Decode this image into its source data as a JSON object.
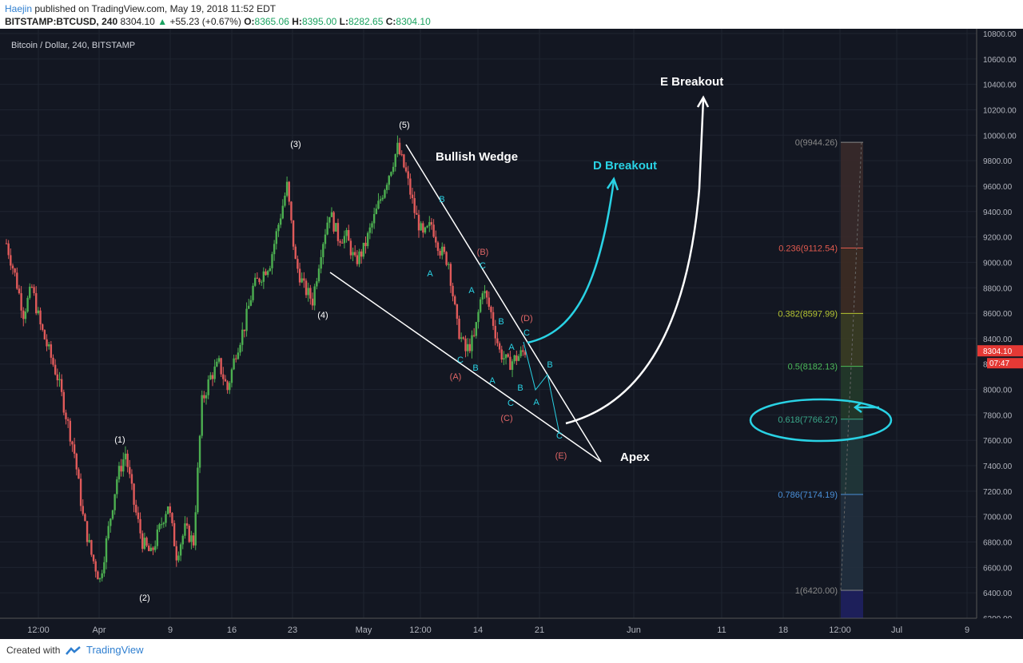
{
  "header": {
    "author": "Haejin",
    "published_text": "published on TradingView.com, May 19, 2018 11:52 EDT",
    "symbol": "BITSTAMP:BTCUSD, 240",
    "last": "8304.10",
    "change": "+55.23 (+0.67%)",
    "o_label": "O:",
    "o": "8365.06",
    "h_label": "H:",
    "h": "8395.00",
    "l_label": "L:",
    "l": "8282.65",
    "c_label": "C:",
    "c": "8304.10"
  },
  "chart_data": {
    "type": "candlestick",
    "title": "Bitcoin / Dollar, 240, BITSTAMP",
    "ylim": [
      6200,
      10800
    ],
    "y_ticks": [
      6200,
      6400,
      6600,
      6800,
      7000,
      7200,
      7400,
      7600,
      7800,
      8000,
      8200,
      8400,
      8600,
      8800,
      9000,
      9200,
      9400,
      9600,
      9800,
      10000,
      10200,
      10400,
      10600,
      10800
    ],
    "y_tick_labels": [
      "6200.00",
      "6400.00",
      "6600.00",
      "6800.00",
      "7000.00",
      "7200.00",
      "7400.00",
      "7600.00",
      "7800.00",
      "8000.00",
      "8200.00",
      "8400.00",
      "8600.00",
      "8800.00",
      "9000.00",
      "9200.00",
      "9400.00",
      "9600.00",
      "9800.00",
      "10000.00",
      "10200.00",
      "10400.00",
      "10600.00",
      "10800.00"
    ],
    "x_tick_labels": [
      "12:00",
      "Apr",
      "9",
      "16",
      "23",
      "May",
      "12:00",
      "14",
      "21",
      "Jun",
      "11",
      "18",
      "12:00",
      "Jul",
      "9"
    ],
    "price_path": [
      [
        0,
        9150
      ],
      [
        2,
        8900
      ],
      [
        4,
        8600
      ],
      [
        6,
        8800
      ],
      [
        8,
        8500
      ],
      [
        10,
        8300
      ],
      [
        12,
        8100
      ],
      [
        14,
        7800
      ],
      [
        16,
        7500
      ],
      [
        18,
        7000
      ],
      [
        20,
        6700
      ],
      [
        22,
        6500
      ],
      [
        24,
        6900
      ],
      [
        26,
        7300
      ],
      [
        28,
        7500
      ],
      [
        30,
        7100
      ],
      [
        32,
        6800
      ],
      [
        34,
        6700
      ],
      [
        36,
        6900
      ],
      [
        38,
        7100
      ],
      [
        40,
        6700
      ],
      [
        42,
        6900
      ],
      [
        44,
        6800
      ],
      [
        46,
        7900
      ],
      [
        48,
        8100
      ],
      [
        50,
        8200
      ],
      [
        52,
        8000
      ],
      [
        54,
        8300
      ],
      [
        56,
        8500
      ],
      [
        58,
        8800
      ],
      [
        60,
        8900
      ],
      [
        62,
        9000
      ],
      [
        64,
        9300
      ],
      [
        66,
        9600
      ],
      [
        68,
        9000
      ],
      [
        70,
        8800
      ],
      [
        72,
        8700
      ],
      [
        74,
        9100
      ],
      [
        76,
        9400
      ],
      [
        78,
        9200
      ],
      [
        80,
        9200
      ],
      [
        82,
        9000
      ],
      [
        84,
        9100
      ],
      [
        86,
        9300
      ],
      [
        88,
        9500
      ],
      [
        90,
        9700
      ],
      [
        92,
        9900
      ],
      [
        94,
        9700
      ],
      [
        96,
        9400
      ],
      [
        98,
        9200
      ],
      [
        100,
        9300
      ],
      [
        102,
        9100
      ],
      [
        104,
        9000
      ],
      [
        106,
        8500
      ],
      [
        108,
        8300
      ],
      [
        110,
        8400
      ],
      [
        112,
        8800
      ],
      [
        114,
        8600
      ],
      [
        116,
        8300
      ],
      [
        118,
        8200
      ],
      [
        120,
        8250
      ],
      [
        122,
        8304
      ]
    ],
    "wave_labels": [
      {
        "text": "(1)",
        "price": 7650,
        "t": 30,
        "color": "#ffffff"
      },
      {
        "text": "(2)",
        "price": 6420,
        "t": 38,
        "color": "#ffffff"
      },
      {
        "text": "(3)",
        "price": 10180,
        "t": 76,
        "color": "#ffffff"
      },
      {
        "text": "(4)",
        "price": 8700,
        "t": 84,
        "color": "#ffffff"
      },
      {
        "text": "(5)",
        "price": 10100,
        "t": 100,
        "color": "#ffffff"
      },
      {
        "text": "(A)",
        "price": 8000,
        "t": 108,
        "color": "#e06666"
      },
      {
        "text": "(B)",
        "price": 9100,
        "t": 112,
        "color": "#e06666"
      },
      {
        "text": "(C)",
        "price": 7800,
        "t": 118,
        "color": "#e06666"
      },
      {
        "text": "(D)",
        "price": 8550,
        "t": 122,
        "color": "#e06666"
      },
      {
        "text": "(E)",
        "price": 7400,
        "t": 130,
        "color": "#e06666"
      }
    ],
    "sub_labels": [
      "B",
      "A",
      "C",
      "B",
      "C",
      "A",
      "A",
      "B",
      "C",
      "A",
      "B",
      "C",
      "A",
      "B",
      "C",
      "A",
      "B",
      "C"
    ],
    "fib_levels": [
      {
        "ratio": "0",
        "price": 9944.26,
        "label": "0(9944.26)",
        "color": "#888888"
      },
      {
        "ratio": "0.236",
        "price": 9112.54,
        "label": "0.236(9112.54)",
        "color": "#e05a4e"
      },
      {
        "ratio": "0.382",
        "price": 8597.99,
        "label": "0.382(8597.99)",
        "color": "#b5c432"
      },
      {
        "ratio": "0.5",
        "price": 8182.13,
        "label": "0.5(8182.13)",
        "color": "#4cbb5a"
      },
      {
        "ratio": "0.618",
        "price": 7766.27,
        "label": "0.618(7766.27)",
        "color": "#3aa88a"
      },
      {
        "ratio": "0.786",
        "price": 7174.19,
        "label": "0.786(7174.19)",
        "color": "#4a90d9"
      },
      {
        "ratio": "1",
        "price": 6420.0,
        "label": "1(6420.00)",
        "color": "#888888"
      }
    ],
    "annotations": {
      "wedge": "Bullish Wedge",
      "d_breakout": "D Breakout",
      "e_breakout": "E Breakout",
      "apex": "Apex"
    },
    "last_price_label": "8304.10",
    "countdown_label": "07:47",
    "countdown_partial_price": "82"
  },
  "footer": {
    "created_with": "Created with",
    "brand": "TradingView"
  },
  "colors": {
    "background": "#131722",
    "candle_up": "#4caf50",
    "candle_down": "#e05a5a",
    "cyan": "#29d2e4",
    "last_price": "#e53935"
  }
}
